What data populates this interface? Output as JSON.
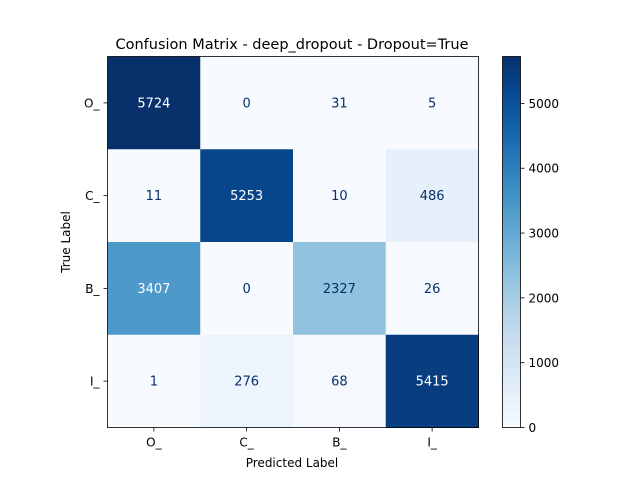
{
  "chart_data": {
    "type": "heatmap",
    "title": "Confusion Matrix - deep_dropout - Dropout=True",
    "xlabel": "Predicted Label",
    "ylabel": "True Label",
    "x_categories": [
      "O_",
      "C_",
      "B_",
      "I_"
    ],
    "y_categories": [
      "O_",
      "C_",
      "B_",
      "I_"
    ],
    "values": [
      [
        5724,
        0,
        31,
        5
      ],
      [
        11,
        5253,
        10,
        486
      ],
      [
        3407,
        0,
        2327,
        26
      ],
      [
        1,
        276,
        68,
        5415
      ]
    ],
    "colormap": "Blues",
    "vmin": 0,
    "vmax": 5724,
    "colorbar_ticks": [
      0,
      1000,
      2000,
      3000,
      4000,
      5000
    ]
  }
}
